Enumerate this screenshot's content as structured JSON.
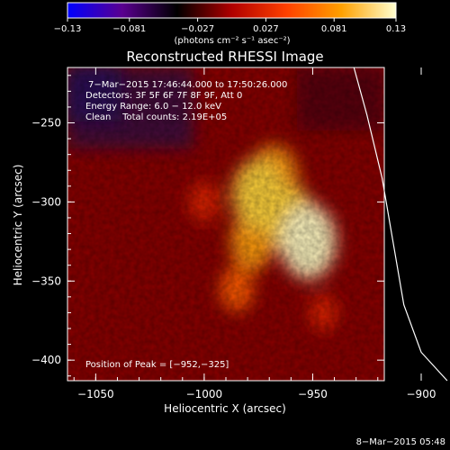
{
  "chart_data": {
    "type": "heatmap",
    "title": "Reconstructed RHESSI Image",
    "xlabel": "Heliocentric X (arcsec)",
    "ylabel": "Heliocentric Y (arcsec)",
    "xlim": [
      -1063,
      -917
    ],
    "ylim": [
      -413,
      -215
    ],
    "x_ticks": [
      -1050,
      -1000,
      -950,
      -900
    ],
    "x_tick_labels": [
      "−1050",
      "−1000",
      "−950",
      "−900"
    ],
    "y_ticks": [
      -250,
      -300,
      -350,
      -400
    ],
    "y_tick_labels": [
      "−250",
      "−300",
      "−350",
      "−400"
    ],
    "colorbar": {
      "min": -0.13,
      "max": 0.13,
      "ticks": [
        -0.13,
        -0.081,
        -0.027,
        0.027,
        0.081,
        0.13
      ],
      "tick_labels": [
        "−0.13",
        "−0.081",
        "−0.027",
        "0.027",
        "0.081",
        "0.13"
      ],
      "units_label": "(photons cm⁻² s⁻¹ asec⁻²)",
      "colors": [
        "#0000ff",
        "#5a0090",
        "#000000",
        "#b00000",
        "#ff4000",
        "#ffa000",
        "#ffffd0"
      ]
    },
    "annotations": [
      "7−Mar−2015 17:46:44.000 to 17:50:26.000",
      "Detectors: 3F 5F 6F 7F 8F 9F, Att 0",
      "Energy Range: 6.0 − 12.0 keV",
      "Clean    Total counts: 2.19E+05"
    ],
    "peak_label": "Position of Peak = [−952,−325]",
    "peak": [
      -952,
      -325
    ],
    "sources": [
      {
        "x": -975,
        "y": -295,
        "value": 0.12
      },
      {
        "x": -968,
        "y": -285,
        "value": 0.11
      },
      {
        "x": -952,
        "y": -325,
        "value": 0.13
      },
      {
        "x": -960,
        "y": -312,
        "value": 0.115
      },
      {
        "x": -978,
        "y": -325,
        "value": 0.09
      },
      {
        "x": -985,
        "y": -355,
        "value": 0.06
      },
      {
        "x": -1000,
        "y": -300,
        "value": 0.05
      },
      {
        "x": -945,
        "y": -370,
        "value": 0.04
      }
    ],
    "limb_curve": [
      {
        "x": -931,
        "y": -215
      },
      {
        "x": -925,
        "y": -245
      },
      {
        "x": -918,
        "y": -285
      },
      {
        "x": -913,
        "y": -325
      },
      {
        "x": -908,
        "y": -365
      },
      {
        "x": -900,
        "y": -395
      },
      {
        "x": -888,
        "y": -413
      }
    ]
  },
  "footer_timestamp": "8−Mar−2015 05:48"
}
